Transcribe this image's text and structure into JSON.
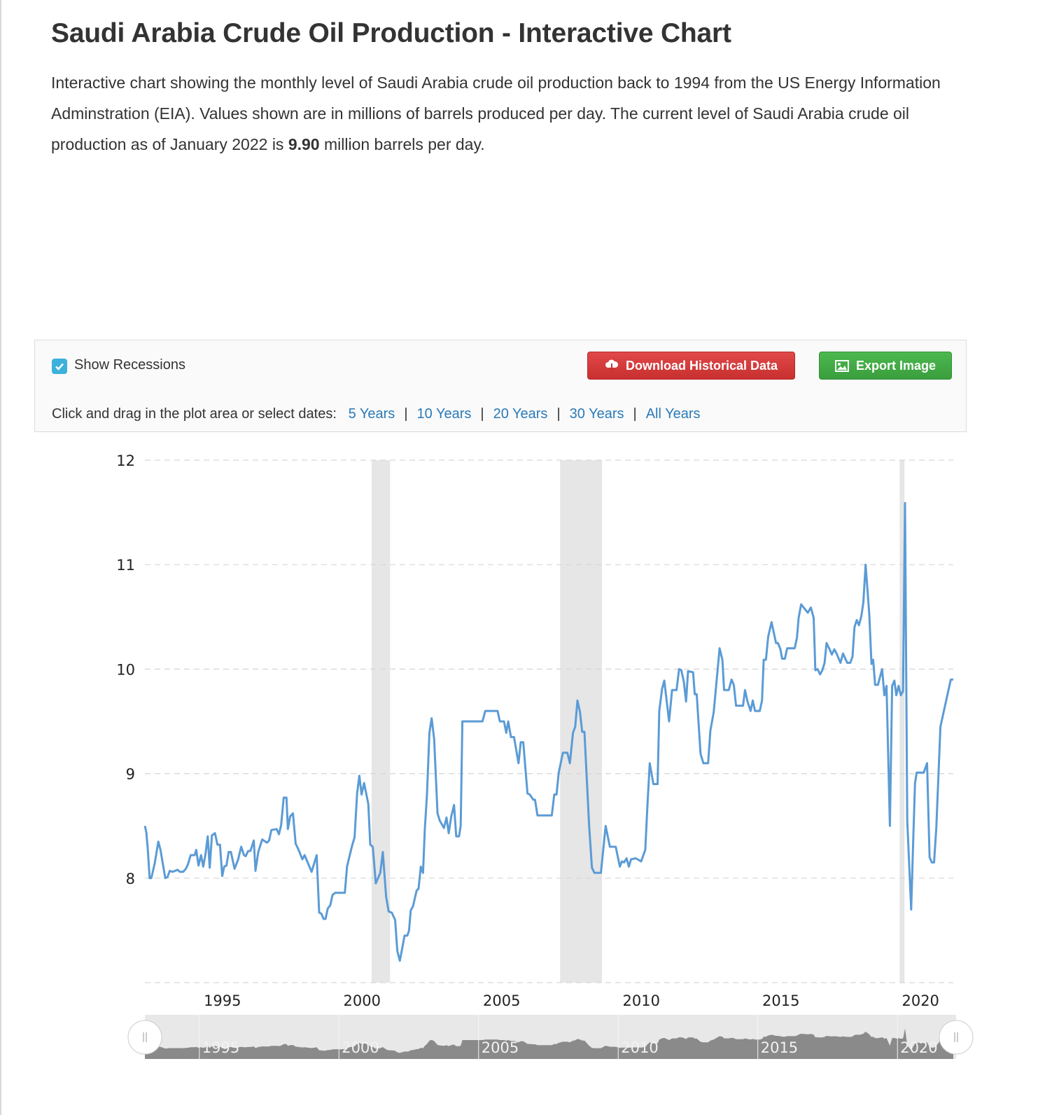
{
  "header": {
    "title": "Saudi Arabia Crude Oil Production - Interactive Chart",
    "desc_part1": "Interactive chart showing the monthly level of Saudi Arabia crude oil production back to 1994 from the US Energy Information Adminstration (EIA). Values shown are in millions of barrels produced per day. The current level of Saudi Arabia crude oil production as of January 2022 is ",
    "desc_value": "9.90",
    "desc_part2": " million barrels per day."
  },
  "controls": {
    "show_recessions_label": "Show Recessions",
    "show_recessions_checked": true,
    "download_label": "Download Historical Data",
    "export_label": "Export Image",
    "range_prompt": "Click and drag in the plot area or select dates:",
    "ranges": [
      "5 Years",
      "10 Years",
      "20 Years",
      "30 Years",
      "All Years"
    ],
    "separator": "|"
  },
  "colors": {
    "line": "#5b9bd5",
    "recession": "#e6e6e6",
    "download": "#d63a3a",
    "export": "#40a843",
    "link": "#2a7ab8",
    "checkbox": "#3cb1dc"
  },
  "chart_data": {
    "type": "line",
    "title": "Saudi Arabia Crude Oil Production",
    "ylabel": "Million barrels per day",
    "ylim": [
      7,
      12
    ],
    "xlim": [
      1993.05,
      2022.0
    ],
    "yticks": [
      "8",
      "9",
      "10",
      "11",
      "12"
    ],
    "xticks": [
      "1995",
      "2000",
      "2005",
      "2010",
      "2015",
      "2020"
    ],
    "grid": true,
    "recessions": [
      [
        2001.17,
        2001.83
      ],
      [
        2007.92,
        2009.42
      ],
      [
        2020.08,
        2020.25
      ]
    ],
    "series": [
      {
        "name": "Saudi Arabia Crude Oil Production",
        "points": [
          [
            1993.05,
            8.5
          ],
          [
            1993.1,
            8.44
          ],
          [
            1993.15,
            8.29
          ],
          [
            1993.22,
            8.0
          ],
          [
            1993.28,
            8.0
          ],
          [
            1993.4,
            8.14
          ],
          [
            1993.53,
            8.35
          ],
          [
            1993.61,
            8.27
          ],
          [
            1993.78,
            8.0
          ],
          [
            1993.86,
            8.01
          ],
          [
            1993.94,
            8.07
          ],
          [
            1994.05,
            8.06
          ],
          [
            1994.22,
            8.08
          ],
          [
            1994.3,
            8.06
          ],
          [
            1994.42,
            8.06
          ],
          [
            1994.52,
            8.09
          ],
          [
            1994.59,
            8.13
          ],
          [
            1994.69,
            8.22
          ],
          [
            1994.83,
            8.22
          ],
          [
            1994.89,
            8.27
          ],
          [
            1994.97,
            8.12
          ],
          [
            1995.06,
            8.22
          ],
          [
            1995.14,
            8.11
          ],
          [
            1995.22,
            8.23
          ],
          [
            1995.3,
            8.4
          ],
          [
            1995.37,
            8.1
          ],
          [
            1995.45,
            8.41
          ],
          [
            1995.56,
            8.43
          ],
          [
            1995.65,
            8.32
          ],
          [
            1995.74,
            8.32
          ],
          [
            1995.82,
            8.02
          ],
          [
            1995.89,
            8.11
          ],
          [
            1995.97,
            8.12
          ],
          [
            1996.05,
            8.25
          ],
          [
            1996.13,
            8.25
          ],
          [
            1996.26,
            8.09
          ],
          [
            1996.39,
            8.18
          ],
          [
            1996.5,
            8.3
          ],
          [
            1996.6,
            8.22
          ],
          [
            1996.66,
            8.21
          ],
          [
            1996.75,
            8.26
          ],
          [
            1996.83,
            8.26
          ],
          [
            1996.95,
            8.36
          ],
          [
            1997.01,
            8.07
          ],
          [
            1997.11,
            8.25
          ],
          [
            1997.25,
            8.37
          ],
          [
            1997.42,
            8.34
          ],
          [
            1997.5,
            8.36
          ],
          [
            1997.58,
            8.46
          ],
          [
            1997.77,
            8.47
          ],
          [
            1997.85,
            8.42
          ],
          [
            1997.93,
            8.51
          ],
          [
            1998.02,
            8.77
          ],
          [
            1998.12,
            8.77
          ],
          [
            1998.17,
            8.47
          ],
          [
            1998.25,
            8.59
          ],
          [
            1998.35,
            8.62
          ],
          [
            1998.45,
            8.33
          ],
          [
            1998.54,
            8.28
          ],
          [
            1998.69,
            8.18
          ],
          [
            1998.77,
            8.22
          ],
          [
            1999.02,
            8.06
          ],
          [
            1999.2,
            8.22
          ],
          [
            1999.29,
            7.67
          ],
          [
            1999.37,
            7.66
          ],
          [
            1999.45,
            7.61
          ],
          [
            1999.52,
            7.61
          ],
          [
            1999.6,
            7.71
          ],
          [
            1999.69,
            7.74
          ],
          [
            1999.77,
            7.84
          ],
          [
            1999.87,
            7.86
          ],
          [
            2000.21,
            7.86
          ],
          [
            2000.29,
            8.11
          ],
          [
            2000.36,
            8.19
          ],
          [
            2000.48,
            8.32
          ],
          [
            2000.56,
            8.39
          ],
          [
            2000.65,
            8.81
          ],
          [
            2000.73,
            8.98
          ],
          [
            2000.81,
            8.8
          ],
          [
            2000.9,
            8.91
          ],
          [
            2001.05,
            8.71
          ],
          [
            2001.12,
            8.32
          ],
          [
            2001.21,
            8.3
          ],
          [
            2001.32,
            7.95
          ],
          [
            2001.48,
            8.05
          ],
          [
            2001.57,
            8.25
          ],
          [
            2001.69,
            7.82
          ],
          [
            2001.78,
            7.68
          ],
          [
            2001.89,
            7.67
          ],
          [
            2002.01,
            7.6
          ],
          [
            2002.09,
            7.3
          ],
          [
            2002.18,
            7.21
          ],
          [
            2002.26,
            7.32
          ],
          [
            2002.35,
            7.45
          ],
          [
            2002.45,
            7.45
          ],
          [
            2002.51,
            7.5
          ],
          [
            2002.57,
            7.69
          ],
          [
            2002.65,
            7.73
          ],
          [
            2002.78,
            7.88
          ],
          [
            2002.85,
            7.9
          ],
          [
            2002.93,
            8.11
          ],
          [
            2003.01,
            8.05
          ],
          [
            2003.07,
            8.45
          ],
          [
            2003.15,
            8.8
          ],
          [
            2003.24,
            9.39
          ],
          [
            2003.32,
            9.53
          ],
          [
            2003.41,
            9.33
          ],
          [
            2003.53,
            8.62
          ],
          [
            2003.61,
            8.55
          ],
          [
            2003.76,
            8.48
          ],
          [
            2003.85,
            8.58
          ],
          [
            2003.93,
            8.43
          ],
          [
            2004.02,
            8.59
          ],
          [
            2004.12,
            8.7
          ],
          [
            2004.2,
            8.4
          ],
          [
            2004.3,
            8.4
          ],
          [
            2004.36,
            8.5
          ],
          [
            2004.42,
            9.5
          ],
          [
            2005.14,
            9.5
          ],
          [
            2005.24,
            9.6
          ],
          [
            2005.68,
            9.6
          ],
          [
            2005.76,
            9.5
          ],
          [
            2005.91,
            9.5
          ],
          [
            2005.99,
            9.39
          ],
          [
            2006.06,
            9.5
          ],
          [
            2006.16,
            9.35
          ],
          [
            2006.27,
            9.35
          ],
          [
            2006.43,
            9.1
          ],
          [
            2006.51,
            9.3
          ],
          [
            2006.6,
            9.3
          ],
          [
            2006.75,
            8.81
          ],
          [
            2006.83,
            8.8
          ],
          [
            2006.96,
            8.75
          ],
          [
            2007.02,
            8.75
          ],
          [
            2007.11,
            8.6
          ],
          [
            2007.62,
            8.6
          ],
          [
            2007.71,
            8.8
          ],
          [
            2007.79,
            8.8
          ],
          [
            2007.87,
            9.01
          ],
          [
            2008.02,
            9.2
          ],
          [
            2008.18,
            9.2
          ],
          [
            2008.27,
            9.1
          ],
          [
            2008.38,
            9.39
          ],
          [
            2008.46,
            9.45
          ],
          [
            2008.54,
            9.7
          ],
          [
            2008.63,
            9.59
          ],
          [
            2008.71,
            9.4
          ],
          [
            2008.79,
            9.4
          ],
          [
            2008.96,
            8.49
          ],
          [
            2009.06,
            8.1
          ],
          [
            2009.15,
            8.05
          ],
          [
            2009.38,
            8.05
          ],
          [
            2009.55,
            8.5
          ],
          [
            2009.7,
            8.3
          ],
          [
            2009.91,
            8.3
          ],
          [
            2010.06,
            8.11
          ],
          [
            2010.13,
            8.16
          ],
          [
            2010.21,
            8.15
          ],
          [
            2010.3,
            8.19
          ],
          [
            2010.38,
            8.11
          ],
          [
            2010.46,
            8.18
          ],
          [
            2010.63,
            8.19
          ],
          [
            2010.82,
            8.16
          ],
          [
            2010.97,
            8.27
          ],
          [
            2011.05,
            8.71
          ],
          [
            2011.13,
            9.1
          ],
          [
            2011.26,
            8.9
          ],
          [
            2011.41,
            8.9
          ],
          [
            2011.47,
            9.6
          ],
          [
            2011.57,
            9.81
          ],
          [
            2011.65,
            9.89
          ],
          [
            2011.82,
            9.5
          ],
          [
            2011.93,
            9.8
          ],
          [
            2012.09,
            9.8
          ],
          [
            2012.18,
            10.0
          ],
          [
            2012.26,
            9.99
          ],
          [
            2012.35,
            9.88
          ],
          [
            2012.43,
            9.69
          ],
          [
            2012.5,
            9.98
          ],
          [
            2012.68,
            9.97
          ],
          [
            2012.74,
            9.76
          ],
          [
            2012.81,
            9.76
          ],
          [
            2012.95,
            9.19
          ],
          [
            2013.05,
            9.1
          ],
          [
            2013.22,
            9.1
          ],
          [
            2013.3,
            9.41
          ],
          [
            2013.42,
            9.59
          ],
          [
            2013.63,
            10.2
          ],
          [
            2013.73,
            10.09
          ],
          [
            2013.79,
            9.8
          ],
          [
            2013.96,
            9.8
          ],
          [
            2014.06,
            9.9
          ],
          [
            2014.14,
            9.85
          ],
          [
            2014.22,
            9.65
          ],
          [
            2014.47,
            9.65
          ],
          [
            2014.54,
            9.8
          ],
          [
            2014.63,
            9.69
          ],
          [
            2014.74,
            9.6
          ],
          [
            2014.82,
            9.7
          ],
          [
            2014.9,
            9.6
          ],
          [
            2015.07,
            9.6
          ],
          [
            2015.15,
            9.7
          ],
          [
            2015.21,
            10.09
          ],
          [
            2015.29,
            10.09
          ],
          [
            2015.37,
            10.31
          ],
          [
            2015.49,
            10.45
          ],
          [
            2015.65,
            10.25
          ],
          [
            2015.72,
            10.25
          ],
          [
            2015.81,
            10.19
          ],
          [
            2015.87,
            10.1
          ],
          [
            2015.97,
            10.1
          ],
          [
            2016.05,
            10.2
          ],
          [
            2016.32,
            10.2
          ],
          [
            2016.4,
            10.3
          ],
          [
            2016.46,
            10.49
          ],
          [
            2016.55,
            10.62
          ],
          [
            2016.67,
            10.58
          ],
          [
            2016.79,
            10.54
          ],
          [
            2016.9,
            10.59
          ],
          [
            2017.0,
            10.49
          ],
          [
            2017.06,
            9.99
          ],
          [
            2017.14,
            10.0
          ],
          [
            2017.23,
            9.95
          ],
          [
            2017.31,
            9.99
          ],
          [
            2017.39,
            10.06
          ],
          [
            2017.46,
            10.25
          ],
          [
            2017.57,
            10.19
          ],
          [
            2017.65,
            10.14
          ],
          [
            2017.74,
            10.19
          ],
          [
            2017.82,
            10.15
          ],
          [
            2017.96,
            10.06
          ],
          [
            2018.05,
            10.15
          ],
          [
            2018.2,
            10.06
          ],
          [
            2018.31,
            10.06
          ],
          [
            2018.39,
            10.12
          ],
          [
            2018.46,
            10.4
          ],
          [
            2018.54,
            10.47
          ],
          [
            2018.62,
            10.42
          ],
          [
            2018.71,
            10.51
          ],
          [
            2018.78,
            10.64
          ],
          [
            2018.86,
            11.0
          ],
          [
            2018.99,
            10.53
          ],
          [
            2019.07,
            10.05
          ],
          [
            2019.13,
            10.09
          ],
          [
            2019.2,
            9.85
          ],
          [
            2019.3,
            9.85
          ],
          [
            2019.45,
            10.0
          ],
          [
            2019.53,
            9.75
          ],
          [
            2019.61,
            9.84
          ],
          [
            2019.73,
            8.5
          ],
          [
            2019.81,
            9.84
          ],
          [
            2019.89,
            9.89
          ],
          [
            2019.96,
            9.75
          ],
          [
            2020.04,
            9.84
          ],
          [
            2020.12,
            9.75
          ],
          [
            2020.2,
            9.79
          ],
          [
            2020.27,
            11.59
          ],
          [
            2020.35,
            8.55
          ],
          [
            2020.49,
            7.7
          ],
          [
            2020.57,
            8.4
          ],
          [
            2020.63,
            8.91
          ],
          [
            2020.69,
            9.01
          ],
          [
            2020.94,
            9.01
          ],
          [
            2021.06,
            9.1
          ],
          [
            2021.15,
            8.2
          ],
          [
            2021.23,
            8.15
          ],
          [
            2021.31,
            8.15
          ],
          [
            2021.39,
            8.48
          ],
          [
            2021.54,
            9.45
          ],
          [
            2021.91,
            9.9
          ],
          [
            2022.0,
            9.9
          ]
        ]
      }
    ],
    "navigator_labels": [
      "1995",
      "2000",
      "2005",
      "2010",
      "2015",
      "2020"
    ]
  }
}
